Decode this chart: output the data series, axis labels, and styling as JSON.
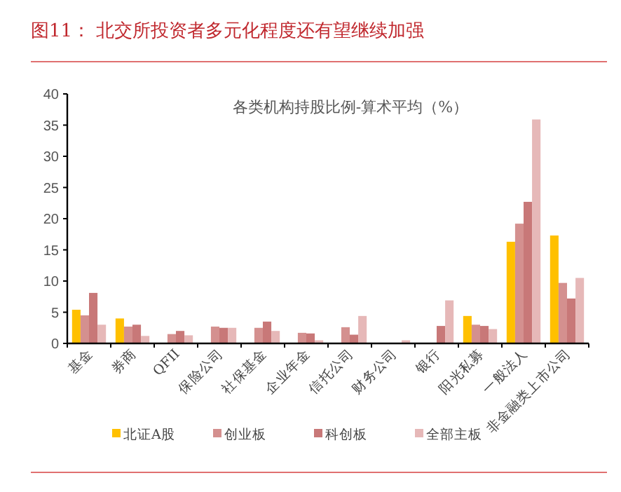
{
  "chart_data": {
    "type": "bar",
    "title": "图11：  北交所投资者多元化程度还有望继续加强",
    "subtitle": "各类机构持股比例-算术平均（%）",
    "categories": [
      "基金",
      "券商",
      "QFII",
      "保险公司",
      "社保基金",
      "企业年金",
      "信托公司",
      "财务公司",
      "银行",
      "阳光私募",
      "一般法人",
      "非金融类上市公司"
    ],
    "series": [
      {
        "name": "北证A股",
        "color": "#ffc000",
        "values": [
          5.4,
          4.0,
          0,
          0,
          0,
          0,
          0,
          0,
          0,
          4.4,
          16.3,
          17.3
        ]
      },
      {
        "name": "创业板",
        "color": "#d4908f",
        "values": [
          4.5,
          2.7,
          1.5,
          2.7,
          2.5,
          1.7,
          2.6,
          0,
          0,
          3.0,
          19.2,
          9.7
        ]
      },
      {
        "name": "科创板",
        "color": "#c87878",
        "values": [
          8.1,
          3.0,
          2.0,
          2.5,
          3.5,
          1.6,
          1.4,
          0,
          2.8,
          2.8,
          22.7,
          7.2
        ]
      },
      {
        "name": "全部主板",
        "color": "#e6b8b8",
        "values": [
          3.0,
          1.2,
          1.3,
          2.5,
          2.0,
          0.5,
          4.4,
          0.5,
          6.9,
          2.3,
          35.9,
          10.5
        ]
      }
    ],
    "ylim": [
      0,
      40
    ],
    "yticks": [
      0,
      5,
      10,
      15,
      20,
      25,
      30,
      35,
      40
    ],
    "grid": false,
    "legend": "bottom"
  }
}
